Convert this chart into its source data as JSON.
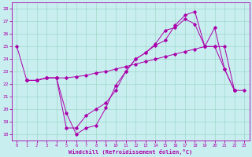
{
  "background_color": "#c8eef0",
  "grid_color": "#a0d8c8",
  "line_color": "#aa00aa",
  "xlim": [
    -0.5,
    23.5
  ],
  "ylim": [
    17.5,
    28.5
  ],
  "xticks": [
    0,
    1,
    2,
    3,
    4,
    5,
    6,
    7,
    8,
    9,
    10,
    11,
    12,
    13,
    14,
    15,
    16,
    17,
    18,
    19,
    20,
    21,
    22,
    23
  ],
  "yticks": [
    18,
    19,
    20,
    21,
    22,
    23,
    24,
    25,
    26,
    27,
    28
  ],
  "xlabel": "Windchill (Refroidissement éolien,°C)",
  "line1_x": [
    0,
    1,
    2,
    3,
    4,
    5,
    6,
    7,
    8,
    9,
    10,
    11,
    12,
    13,
    14,
    15,
    16,
    17,
    18,
    19,
    20,
    21,
    22
  ],
  "line1_y": [
    25.0,
    22.3,
    22.3,
    22.5,
    22.5,
    19.7,
    18.0,
    18.5,
    18.7,
    20.1,
    21.9,
    23.0,
    24.0,
    24.5,
    25.1,
    25.5,
    26.7,
    27.5,
    27.8,
    25.0,
    26.5,
    23.2,
    21.5
  ],
  "line2_x": [
    1,
    2,
    3,
    4,
    5,
    6,
    7,
    8,
    9,
    10,
    11,
    12,
    13,
    14,
    15,
    16,
    17,
    18,
    19,
    20,
    21,
    22
  ],
  "line2_y": [
    22.3,
    22.3,
    22.5,
    22.5,
    18.5,
    18.5,
    19.5,
    20.0,
    20.5,
    21.5,
    23.0,
    24.0,
    24.5,
    25.2,
    26.3,
    26.5,
    27.2,
    26.8,
    25.0,
    25.0,
    23.2,
    21.5
  ],
  "line3_x": [
    1,
    2,
    3,
    4,
    5,
    6,
    7,
    8,
    9,
    10,
    11,
    12,
    13,
    14,
    15,
    16,
    17,
    18,
    19,
    20,
    21,
    22,
    23
  ],
  "line3_y": [
    22.3,
    22.3,
    22.5,
    22.5,
    22.5,
    22.6,
    22.7,
    22.9,
    23.0,
    23.2,
    23.4,
    23.6,
    23.8,
    24.0,
    24.2,
    24.4,
    24.6,
    24.8,
    25.0,
    25.0,
    25.0,
    21.5,
    21.5
  ]
}
